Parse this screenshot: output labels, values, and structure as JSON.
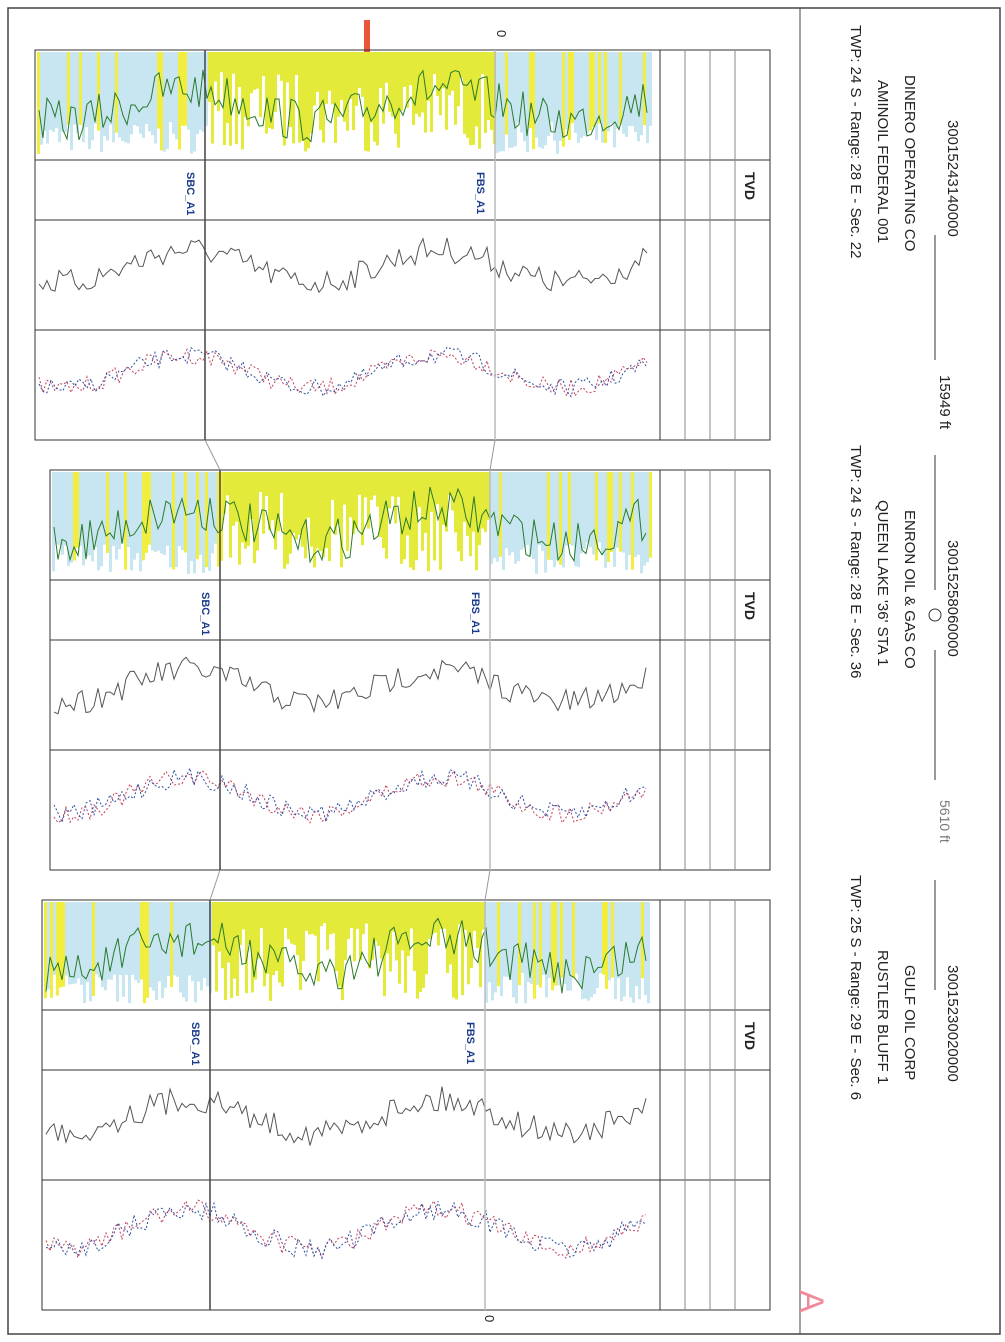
{
  "header": {
    "wells": [
      {
        "api": "30015243140000",
        "operator": "DINERO OPERATING CO",
        "lease": "AMINOIL FEDERAL 001",
        "location": "TWP: 24 S - Range: 28 E - Sec. 22"
      },
      {
        "api": "30015258060000",
        "operator": "ENRON OIL & GAS CO",
        "lease": "QUEEN LAKE '36' STA 1",
        "location": "TWP: 24 S - Range: 28 E - Sec. 36"
      },
      {
        "api": "30015230020000",
        "operator": "GULF OIL CORP",
        "lease": "RUSTLER BLUFF 1",
        "location": "TWP: 25 S - Range: 29 E - Sec. 6"
      }
    ],
    "spacings": [
      "15949 ft",
      "5610 ft"
    ]
  },
  "panels": [
    {
      "depth_label": "TVD",
      "tops": [
        "FBS_A1",
        "SBC_A1"
      ]
    },
    {
      "depth_label": "TVD",
      "tops": [
        "FBS_A1",
        "SBC_A1"
      ]
    },
    {
      "depth_label": "TVD",
      "tops": [
        "FBS_A1",
        "SBC_A1"
      ]
    }
  ],
  "datum_labels": [
    "0",
    "0"
  ],
  "sheet_mark": "A"
}
